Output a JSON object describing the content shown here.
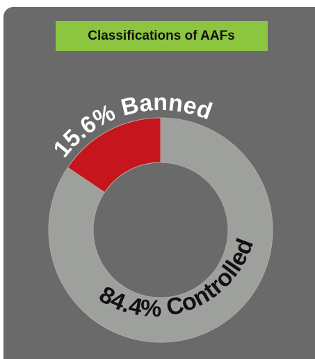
{
  "chart_data": {
    "type": "donut",
    "title": "Classifications of AAFs",
    "categories": [
      "Banned",
      "Controlled"
    ],
    "values": [
      15.6,
      84.4
    ],
    "value_labels": [
      "15.6%",
      "84.4%"
    ],
    "colors": [
      "#c5161d",
      "#9da09c"
    ]
  }
}
